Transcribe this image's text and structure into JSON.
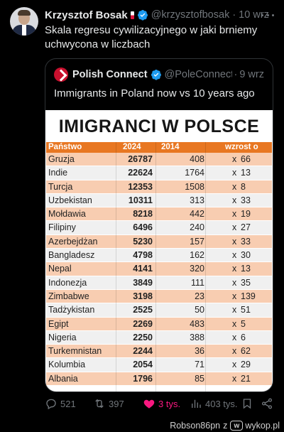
{
  "tweet": {
    "author_name": "Krzysztof Bosak",
    "author_handle": "@krzysztofbosak",
    "dot": "·",
    "time": "10 wrz",
    "text": "Skala regresu cywilizacyjnego w jaki brniemy uchwycona w liczbach"
  },
  "quoted": {
    "author_name": "Polish Connect",
    "author_handle": "@PoleConnect",
    "dot": "·",
    "time": "9 wrz",
    "text": "Immigrants in Poland now vs 10 years ago"
  },
  "table": {
    "title": "IMIGRANCI W POLSCE",
    "headers": [
      "Państwo",
      "2024",
      "2014",
      "wzrost o"
    ],
    "rows": [
      {
        "country": "Gruzja",
        "y2024": "26787",
        "y2014": "408",
        "x": "x",
        "mult": "66"
      },
      {
        "country": "Indie",
        "y2024": "22624",
        "y2014": "1764",
        "x": "x",
        "mult": "13"
      },
      {
        "country": "Turcja",
        "y2024": "12353",
        "y2014": "1508",
        "x": "x",
        "mult": "8"
      },
      {
        "country": "Uzbekistan",
        "y2024": "10311",
        "y2014": "313",
        "x": "x",
        "mult": "33"
      },
      {
        "country": "Mołdawia",
        "y2024": "8218",
        "y2014": "442",
        "x": "x",
        "mult": "19"
      },
      {
        "country": "Filipiny",
        "y2024": "6496",
        "y2014": "240",
        "x": "x",
        "mult": "27"
      },
      {
        "country": "Azerbejdżan",
        "y2024": "5230",
        "y2014": "157",
        "x": "x",
        "mult": "33"
      },
      {
        "country": "Bangladesz",
        "y2024": "4798",
        "y2014": "162",
        "x": "x",
        "mult": "30"
      },
      {
        "country": "Nepal",
        "y2024": "4141",
        "y2014": "320",
        "x": "x",
        "mult": "13"
      },
      {
        "country": "Indonezja",
        "y2024": "3849",
        "y2014": "111",
        "x": "x",
        "mult": "35"
      },
      {
        "country": "Zimbabwe",
        "y2024": "3198",
        "y2014": "23",
        "x": "x",
        "mult": "139"
      },
      {
        "country": "Tadżykistan",
        "y2024": "2525",
        "y2014": "50",
        "x": "x",
        "mult": "51"
      },
      {
        "country": "Egipt",
        "y2024": "2269",
        "y2014": "483",
        "x": "x",
        "mult": "5"
      },
      {
        "country": "Nigeria",
        "y2024": "2250",
        "y2014": "388",
        "x": "x",
        "mult": "6"
      },
      {
        "country": "Turkemnistan",
        "y2024": "2244",
        "y2014": "36",
        "x": "x",
        "mult": "62"
      },
      {
        "country": "Kolumbia",
        "y2024": "2054",
        "y2014": "71",
        "x": "x",
        "mult": "29"
      },
      {
        "country": "Albania",
        "y2024": "1796",
        "y2014": "85",
        "x": "x",
        "mult": "21"
      }
    ]
  },
  "actions": {
    "replies": "521",
    "retweets": "397",
    "likes": "3 tys.",
    "views": "403 tys."
  },
  "footer": {
    "user": "Robson86pn",
    "via": "z",
    "site": "wykop.pl"
  },
  "colors": {
    "header_orange": "#e87722",
    "row_peach": "#f8cdb1",
    "like_pink": "#f91880",
    "verified_blue": "#1d9bf0"
  }
}
